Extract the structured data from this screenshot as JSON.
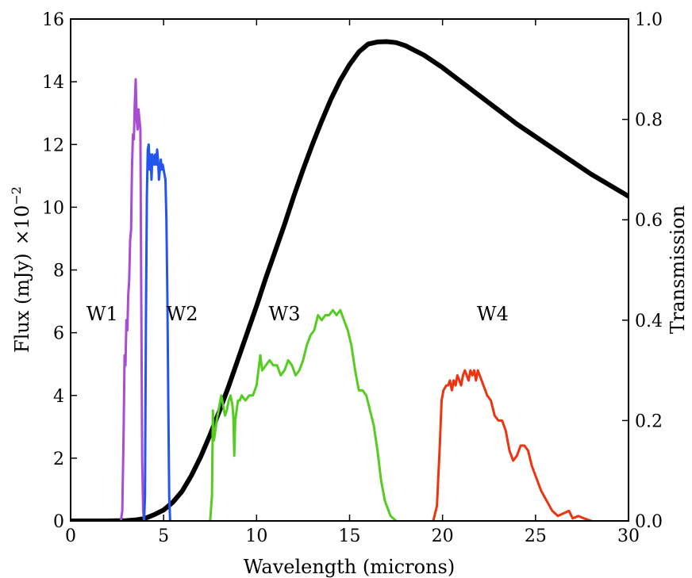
{
  "chart_data": {
    "type": "line",
    "xlabel": "Wavelength (microns)",
    "ylabel_left": "Flux (mJy)",
    "ylabel_left_scale": "×10",
    "ylabel_left_exponent": "−2",
    "ylabel_right": "Transmission",
    "xlim": [
      0,
      30
    ],
    "ylim_left": [
      0,
      16
    ],
    "ylim_right": [
      0,
      1.0
    ],
    "grid": false,
    "x_ticks": [
      "0",
      "5",
      "10",
      "15",
      "20",
      "25",
      "30"
    ],
    "y_left_ticks": [
      "0",
      "2",
      "4",
      "6",
      "8",
      "10",
      "12",
      "14",
      "16"
    ],
    "y_right_ticks": [
      "0.0",
      "0.2",
      "0.4",
      "0.6",
      "0.8",
      "1.0"
    ],
    "annotations": [
      {
        "text": "W1",
        "x": 1.7,
        "y": 6.6
      },
      {
        "text": "W2",
        "x": 6.0,
        "y": 6.6
      },
      {
        "text": "W3",
        "x": 11.5,
        "y": 6.6
      },
      {
        "text": "W4",
        "x": 22.7,
        "y": 6.6
      }
    ],
    "series": [
      {
        "axis": "left",
        "color": "#000000",
        "width": 6,
        "points": [
          [
            0,
            0
          ],
          [
            2,
            0
          ],
          [
            2.5,
            0.005
          ],
          [
            3,
            0.01
          ],
          [
            3.5,
            0.03
          ],
          [
            4,
            0.08
          ],
          [
            4.5,
            0.2
          ],
          [
            5,
            0.35
          ],
          [
            5.5,
            0.6
          ],
          [
            6,
            0.95
          ],
          [
            6.5,
            1.45
          ],
          [
            7,
            2.05
          ],
          [
            7.5,
            2.75
          ],
          [
            8,
            3.5
          ],
          [
            8.5,
            4.3
          ],
          [
            9,
            5.15
          ],
          [
            9.5,
            6.0
          ],
          [
            10,
            6.85
          ],
          [
            10.5,
            7.75
          ],
          [
            11,
            8.6
          ],
          [
            11.5,
            9.45
          ],
          [
            12,
            10.35
          ],
          [
            12.5,
            11.2
          ],
          [
            13,
            12.0
          ],
          [
            13.5,
            12.75
          ],
          [
            14,
            13.45
          ],
          [
            14.5,
            14.05
          ],
          [
            15,
            14.55
          ],
          [
            15.5,
            14.95
          ],
          [
            16,
            15.2
          ],
          [
            16.5,
            15.27
          ],
          [
            17,
            15.28
          ],
          [
            17.5,
            15.25
          ],
          [
            18,
            15.15
          ],
          [
            18.5,
            15.0
          ],
          [
            19,
            14.85
          ],
          [
            20,
            14.45
          ],
          [
            21,
            14.0
          ],
          [
            22,
            13.55
          ],
          [
            23,
            13.1
          ],
          [
            24,
            12.65
          ],
          [
            25,
            12.25
          ],
          [
            26,
            11.85
          ],
          [
            27,
            11.45
          ],
          [
            28,
            11.05
          ],
          [
            29,
            10.7
          ],
          [
            30,
            10.35
          ]
        ]
      },
      {
        "axis": "right",
        "color": "#a84cd0",
        "width": 3,
        "points": [
          [
            2.7,
            0
          ],
          [
            2.78,
            0.02
          ],
          [
            2.85,
            0.18
          ],
          [
            2.9,
            0.33
          ],
          [
            2.95,
            0.31
          ],
          [
            3.0,
            0.4
          ],
          [
            3.05,
            0.38
          ],
          [
            3.1,
            0.45
          ],
          [
            3.15,
            0.48
          ],
          [
            3.2,
            0.56
          ],
          [
            3.25,
            0.58
          ],
          [
            3.3,
            0.7
          ],
          [
            3.35,
            0.77
          ],
          [
            3.4,
            0.76
          ],
          [
            3.45,
            0.83
          ],
          [
            3.5,
            0.88
          ],
          [
            3.55,
            0.8
          ],
          [
            3.6,
            0.78
          ],
          [
            3.65,
            0.82
          ],
          [
            3.7,
            0.8
          ],
          [
            3.75,
            0.78
          ],
          [
            3.8,
            0.45
          ],
          [
            3.85,
            0.12
          ],
          [
            3.9,
            0.02
          ],
          [
            3.95,
            0
          ]
        ]
      },
      {
        "axis": "right",
        "color": "#2255ee",
        "width": 3,
        "points": [
          [
            3.95,
            0
          ],
          [
            4.0,
            0.05
          ],
          [
            4.05,
            0.4
          ],
          [
            4.1,
            0.65
          ],
          [
            4.15,
            0.74
          ],
          [
            4.2,
            0.75
          ],
          [
            4.25,
            0.7
          ],
          [
            4.3,
            0.73
          ],
          [
            4.35,
            0.68
          ],
          [
            4.4,
            0.73
          ],
          [
            4.45,
            0.72
          ],
          [
            4.5,
            0.71
          ],
          [
            4.55,
            0.73
          ],
          [
            4.6,
            0.71
          ],
          [
            4.65,
            0.74
          ],
          [
            4.7,
            0.72
          ],
          [
            4.75,
            0.68
          ],
          [
            4.8,
            0.7
          ],
          [
            4.85,
            0.72
          ],
          [
            4.9,
            0.7
          ],
          [
            4.95,
            0.71
          ],
          [
            5.0,
            0.7
          ],
          [
            5.05,
            0.69
          ],
          [
            5.1,
            0.68
          ],
          [
            5.15,
            0.6
          ],
          [
            5.2,
            0.45
          ],
          [
            5.25,
            0.25
          ],
          [
            5.3,
            0.05
          ],
          [
            5.35,
            0
          ]
        ]
      },
      {
        "axis": "right",
        "color": "#55cc22",
        "width": 3,
        "points": [
          [
            7.5,
            0
          ],
          [
            7.6,
            0.05
          ],
          [
            7.65,
            0.22
          ],
          [
            7.7,
            0.16
          ],
          [
            7.75,
            0.17
          ],
          [
            7.85,
            0.2
          ],
          [
            8.0,
            0.23
          ],
          [
            8.1,
            0.25
          ],
          [
            8.2,
            0.23
          ],
          [
            8.3,
            0.21
          ],
          [
            8.4,
            0.22
          ],
          [
            8.5,
            0.24
          ],
          [
            8.6,
            0.25
          ],
          [
            8.7,
            0.23
          ],
          [
            8.75,
            0.21
          ],
          [
            8.8,
            0.13
          ],
          [
            8.85,
            0.2
          ],
          [
            9.0,
            0.24
          ],
          [
            9.1,
            0.24
          ],
          [
            9.2,
            0.25
          ],
          [
            9.4,
            0.24
          ],
          [
            9.6,
            0.25
          ],
          [
            9.8,
            0.25
          ],
          [
            10.0,
            0.27
          ],
          [
            10.1,
            0.3
          ],
          [
            10.2,
            0.33
          ],
          [
            10.3,
            0.3
          ],
          [
            10.5,
            0.31
          ],
          [
            10.7,
            0.32
          ],
          [
            10.9,
            0.31
          ],
          [
            11.1,
            0.31
          ],
          [
            11.3,
            0.29
          ],
          [
            11.5,
            0.3
          ],
          [
            11.7,
            0.32
          ],
          [
            11.9,
            0.31
          ],
          [
            12.1,
            0.29
          ],
          [
            12.3,
            0.3
          ],
          [
            12.5,
            0.32
          ],
          [
            12.7,
            0.35
          ],
          [
            12.9,
            0.37
          ],
          [
            13.1,
            0.38
          ],
          [
            13.3,
            0.41
          ],
          [
            13.5,
            0.4
          ],
          [
            13.7,
            0.41
          ],
          [
            13.9,
            0.41
          ],
          [
            14.1,
            0.42
          ],
          [
            14.3,
            0.41
          ],
          [
            14.5,
            0.42
          ],
          [
            14.7,
            0.4
          ],
          [
            14.9,
            0.38
          ],
          [
            15.1,
            0.35
          ],
          [
            15.3,
            0.3
          ],
          [
            15.5,
            0.26
          ],
          [
            15.7,
            0.26
          ],
          [
            15.9,
            0.25
          ],
          [
            16.1,
            0.22
          ],
          [
            16.3,
            0.19
          ],
          [
            16.5,
            0.14
          ],
          [
            16.7,
            0.08
          ],
          [
            16.9,
            0.04
          ],
          [
            17.2,
            0.01
          ],
          [
            17.5,
            0
          ]
        ]
      },
      {
        "axis": "right",
        "color": "#ee3311",
        "width": 3,
        "points": [
          [
            19.5,
            0
          ],
          [
            19.7,
            0.03
          ],
          [
            19.85,
            0.15
          ],
          [
            19.95,
            0.24
          ],
          [
            20.05,
            0.26
          ],
          [
            20.2,
            0.27
          ],
          [
            20.3,
            0.27
          ],
          [
            20.4,
            0.28
          ],
          [
            20.5,
            0.26
          ],
          [
            20.6,
            0.28
          ],
          [
            20.7,
            0.27
          ],
          [
            20.8,
            0.29
          ],
          [
            20.9,
            0.28
          ],
          [
            21.0,
            0.27
          ],
          [
            21.1,
            0.29
          ],
          [
            21.2,
            0.3
          ],
          [
            21.3,
            0.29
          ],
          [
            21.4,
            0.28
          ],
          [
            21.5,
            0.3
          ],
          [
            21.6,
            0.29
          ],
          [
            21.7,
            0.3
          ],
          [
            21.8,
            0.28
          ],
          [
            21.9,
            0.3
          ],
          [
            22.0,
            0.29
          ],
          [
            22.1,
            0.28
          ],
          [
            22.2,
            0.27
          ],
          [
            22.3,
            0.26
          ],
          [
            22.4,
            0.25
          ],
          [
            22.6,
            0.24
          ],
          [
            22.8,
            0.21
          ],
          [
            23.0,
            0.2
          ],
          [
            23.2,
            0.2
          ],
          [
            23.4,
            0.18
          ],
          [
            23.6,
            0.14
          ],
          [
            23.8,
            0.12
          ],
          [
            24.0,
            0.13
          ],
          [
            24.2,
            0.15
          ],
          [
            24.4,
            0.15
          ],
          [
            24.6,
            0.14
          ],
          [
            24.8,
            0.11
          ],
          [
            25.0,
            0.09
          ],
          [
            25.3,
            0.06
          ],
          [
            25.6,
            0.04
          ],
          [
            25.9,
            0.02
          ],
          [
            26.2,
            0.01
          ],
          [
            26.5,
            0.015
          ],
          [
            26.8,
            0.02
          ],
          [
            27.0,
            0.005
          ],
          [
            27.3,
            0.01
          ],
          [
            27.6,
            0.005
          ],
          [
            28.0,
            0
          ]
        ]
      }
    ]
  }
}
